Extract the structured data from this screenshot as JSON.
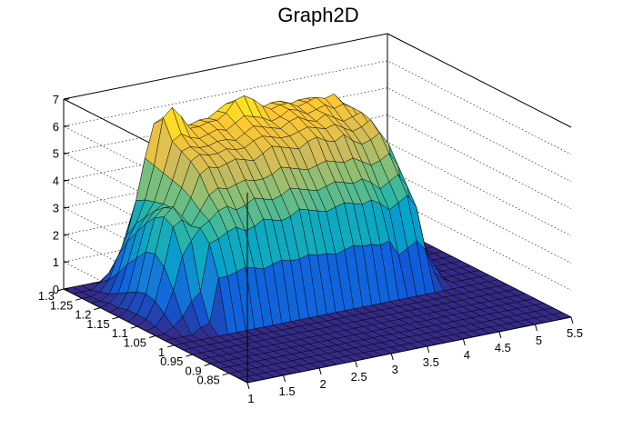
{
  "chart_data": {
    "type": "surface",
    "title": "Graph2D",
    "xlabel": "",
    "ylabel": "",
    "zlabel": "",
    "xlim": [
      1,
      5.5
    ],
    "ylim": [
      0.8,
      1.3
    ],
    "zlim": [
      0,
      7
    ],
    "x_tick_labels": [
      "1",
      "1.5",
      "2",
      "2.5",
      "3",
      "3.5",
      "4",
      "4.5",
      "5",
      "5.5"
    ],
    "y_tick_labels": [
      "0.85",
      "0.9",
      "0.95",
      "1",
      "1.05",
      "1.1",
      "1.15",
      "1.2",
      "1.25",
      "1.3"
    ],
    "z_tick_labels": [
      "0",
      "1",
      "2",
      "3",
      "4",
      "5",
      "6",
      "7"
    ],
    "z_grid": true,
    "colormap": [
      "#352a87",
      "#0f5cdd",
      "#1481d6",
      "#06a4ca",
      "#2eb7a4",
      "#87bf77",
      "#d1bb59",
      "#fec832",
      "#f9fb0e"
    ],
    "x_grid_values": [
      1,
      1.125,
      1.25,
      1.375,
      1.5,
      1.625,
      1.75,
      1.875,
      2,
      2.125,
      2.25,
      2.375,
      2.5,
      2.625,
      2.75,
      2.875,
      3,
      3.125,
      3.25,
      3.375,
      3.5,
      3.625,
      3.75,
      3.875,
      4,
      4.125,
      4.25,
      4.375,
      4.5,
      4.625,
      4.75,
      4.875,
      5,
      5.125,
      5.25,
      5.375,
      5.5
    ],
    "y_grid_values": [
      0.8,
      0.825,
      0.85,
      0.875,
      0.9,
      0.925,
      0.95,
      0.975,
      1,
      1.025,
      1.05,
      1.075,
      1.1,
      1.125,
      1.15,
      1.175,
      1.2,
      1.225,
      1.25,
      1.275,
      1.3
    ],
    "z_values": [
      [
        0,
        0,
        0,
        0,
        0,
        0,
        0,
        0,
        0,
        0,
        0,
        0,
        0,
        0,
        0,
        0,
        0,
        0,
        0,
        0,
        0,
        0,
        0,
        0,
        0,
        0,
        0,
        0,
        0,
        0,
        0,
        0,
        0,
        0,
        0,
        0,
        0
      ],
      [
        0,
        0,
        0,
        0,
        0,
        0,
        0,
        0,
        0,
        0,
        0,
        0,
        0,
        0,
        0,
        0,
        0,
        0,
        0,
        0,
        0,
        0,
        0,
        0,
        0,
        0,
        0,
        0,
        0,
        0,
        0,
        0,
        0,
        0,
        0,
        0,
        0
      ],
      [
        0,
        0,
        0,
        0,
        0,
        0,
        0,
        0,
        0,
        0,
        0,
        0,
        0,
        0,
        0,
        0,
        0,
        0,
        0,
        0,
        0,
        0,
        0,
        0,
        0,
        0,
        0,
        0,
        0,
        0,
        0,
        0,
        0,
        0,
        0,
        0,
        0
      ],
      [
        0,
        0,
        0,
        0,
        0,
        0,
        0,
        0,
        0,
        0,
        0,
        0,
        0,
        0,
        0,
        0,
        0,
        0,
        0,
        0,
        0,
        0,
        0,
        0,
        0,
        0,
        0,
        0,
        0,
        0,
        0,
        0,
        0,
        0,
        0,
        0,
        0
      ],
      [
        0,
        0,
        0,
        0,
        0,
        0,
        0,
        0,
        0,
        0,
        0,
        0,
        0,
        0,
        0,
        0,
        0,
        0,
        0,
        0,
        0,
        0,
        0,
        0,
        0,
        0,
        0,
        0,
        0,
        0,
        0,
        0,
        0,
        0,
        0,
        0,
        0
      ],
      [
        0,
        0,
        0,
        0,
        0,
        0,
        0,
        0,
        0,
        0,
        0,
        0,
        0,
        0,
        0,
        0,
        0,
        0,
        0,
        0,
        0,
        0,
        0,
        0,
        0,
        0,
        0,
        0,
        0,
        0,
        0,
        0,
        0,
        0,
        0,
        0,
        0
      ],
      [
        0,
        0,
        0,
        0,
        0,
        0,
        0,
        0,
        0,
        0,
        0,
        0,
        0,
        0,
        0,
        0,
        0,
        0,
        0,
        0,
        0,
        0,
        0,
        0,
        0,
        0,
        0,
        0,
        0,
        0,
        0,
        0,
        0,
        0,
        0,
        0,
        0
      ],
      [
        0,
        0,
        0,
        0,
        0,
        0,
        0,
        0,
        0,
        0,
        0,
        0,
        0,
        0,
        0,
        0,
        0,
        0,
        0,
        0,
        0,
        0,
        0,
        0,
        0,
        0,
        0,
        0,
        0,
        0,
        0,
        0,
        0,
        0,
        0,
        0,
        0
      ],
      [
        0,
        0,
        0,
        0,
        0,
        0,
        0,
        0,
        0,
        0,
        0,
        0,
        0,
        0,
        0,
        0,
        0,
        0,
        0,
        0,
        0,
        0,
        0,
        0,
        0,
        0,
        0,
        0,
        0,
        0,
        0,
        0,
        0,
        0,
        0,
        0,
        0
      ],
      [
        0,
        0,
        0,
        0,
        0.2,
        0.3,
        1.9,
        1.9,
        2,
        2.1,
        2,
        1.9,
        2,
        2.1,
        2,
        2,
        2.1,
        2,
        2,
        1.9,
        2,
        2.1,
        2,
        2,
        1.9,
        2,
        1.4,
        1.6,
        1.8,
        1.4,
        0.5,
        0.2,
        0,
        0,
        0,
        0,
        0
      ],
      [
        0,
        0,
        0.2,
        0.5,
        1,
        1.3,
        3,
        3.1,
        3.3,
        3.4,
        3.2,
        3.3,
        3.5,
        3.4,
        3.3,
        3.4,
        3.6,
        3.5,
        3.4,
        3.3,
        3.4,
        3.5,
        3.4,
        3.3,
        3.4,
        3.2,
        2.9,
        3.1,
        3.3,
        2.8,
        1.2,
        0.5,
        0,
        0,
        0,
        0,
        0
      ],
      [
        0,
        0.1,
        0.5,
        1.3,
        2.5,
        3,
        3.4,
        3.6,
        3.9,
        4,
        3.8,
        3.9,
        4.1,
        4,
        3.9,
        4,
        4.2,
        4.1,
        4,
        3.9,
        4,
        4.1,
        4,
        3.9,
        4,
        3.8,
        3.5,
        3.7,
        3.9,
        3.4,
        1.6,
        0.7,
        0,
        0,
        0,
        0,
        0
      ],
      [
        0,
        0.2,
        0.8,
        2,
        3.4,
        3.6,
        3.3,
        3.8,
        4.3,
        4.5,
        4.4,
        4.5,
        4.6,
        4.5,
        4.5,
        4.6,
        4.8,
        4.7,
        4.6,
        4.5,
        4.6,
        4.7,
        4.6,
        4.5,
        4.6,
        4.4,
        4.2,
        4.3,
        4.5,
        4,
        2,
        0.9,
        0,
        0,
        0,
        0,
        0
      ],
      [
        0,
        0.2,
        0.9,
        2.3,
        3.6,
        3.9,
        3.5,
        4.1,
        4.9,
        5.1,
        5,
        5.1,
        5.2,
        5.1,
        5,
        5.2,
        5.4,
        5.3,
        5.2,
        5.1,
        5.3,
        5.4,
        5.2,
        5.1,
        5.3,
        5,
        4.8,
        4.9,
        5.1,
        4.6,
        2.2,
        1,
        0,
        0,
        0,
        0,
        0
      ],
      [
        0,
        0.2,
        0.8,
        2.2,
        3.4,
        3.7,
        3.6,
        4.3,
        5.2,
        5.4,
        5.3,
        5.3,
        5.4,
        5.3,
        5.3,
        5.5,
        5.6,
        5.5,
        5.4,
        5.4,
        5.5,
        5.6,
        5.5,
        5.4,
        5.5,
        5.3,
        5.1,
        5.2,
        5.4,
        4.8,
        2.3,
        1,
        0,
        0,
        0,
        0,
        0
      ],
      [
        0,
        0.1,
        0.6,
        1.8,
        3,
        3.4,
        3.6,
        4.4,
        5.4,
        5.5,
        5.4,
        5.4,
        5.5,
        5.5,
        5.4,
        5.6,
        5.8,
        5.7,
        5.6,
        5.5,
        5.7,
        5.8,
        5.6,
        5.5,
        5.7,
        5.5,
        5.3,
        5.4,
        5.5,
        4.9,
        2.3,
        1,
        0,
        0,
        0,
        0,
        0
      ],
      [
        0,
        0.1,
        0.4,
        1.4,
        2.5,
        3,
        3.5,
        4.5,
        5.6,
        5.8,
        5.6,
        5.5,
        5.6,
        5.7,
        5.6,
        5.8,
        6,
        5.9,
        5.8,
        5.6,
        5.7,
        5.9,
        5.8,
        5.6,
        5.7,
        5.8,
        5.6,
        5.7,
        5.5,
        4.9,
        2.2,
        0.9,
        0,
        0,
        0,
        0,
        0
      ],
      [
        0,
        0,
        0.2,
        0.9,
        2,
        2.6,
        3.4,
        4.6,
        6.3,
        6.6,
        6.2,
        5.7,
        5.7,
        5.8,
        5.8,
        6,
        6.4,
        6.5,
        6.3,
        6,
        5.8,
        5.9,
        5.9,
        5.7,
        5.8,
        5.9,
        5.8,
        5.9,
        5.5,
        4.8,
        2,
        0.8,
        0,
        0,
        0,
        0,
        0
      ],
      [
        0,
        0,
        0.1,
        0.5,
        1.3,
        2,
        3.2,
        4.7,
        5.9,
        6,
        5.7,
        5.6,
        5.6,
        5.7,
        5.7,
        5.9,
        6.1,
        6.1,
        6,
        5.8,
        5.7,
        5.8,
        5.8,
        5.6,
        5.7,
        5.7,
        5.5,
        5.4,
        5,
        4.3,
        1.7,
        0.6,
        0,
        0,
        0,
        0,
        0
      ],
      [
        0,
        0,
        0,
        0.2,
        0.5,
        0.9,
        1.9,
        2.8,
        3.4,
        3.5,
        3.4,
        3.3,
        3.4,
        3.4,
        3.4,
        3.5,
        3.6,
        3.6,
        3.5,
        3.4,
        3.4,
        3.5,
        3.4,
        3.3,
        3.4,
        3.4,
        3.3,
        3.2,
        3,
        2.5,
        1,
        0.3,
        0,
        0,
        0,
        0,
        0
      ],
      [
        0,
        0,
        0,
        0,
        0,
        0,
        0,
        0,
        0,
        0,
        0,
        0,
        0,
        0,
        0,
        0,
        0,
        0,
        0,
        0,
        0,
        0,
        0,
        0,
        0,
        0,
        0,
        0,
        0,
        0,
        0,
        0,
        0,
        0,
        0,
        0,
        0
      ]
    ]
  }
}
